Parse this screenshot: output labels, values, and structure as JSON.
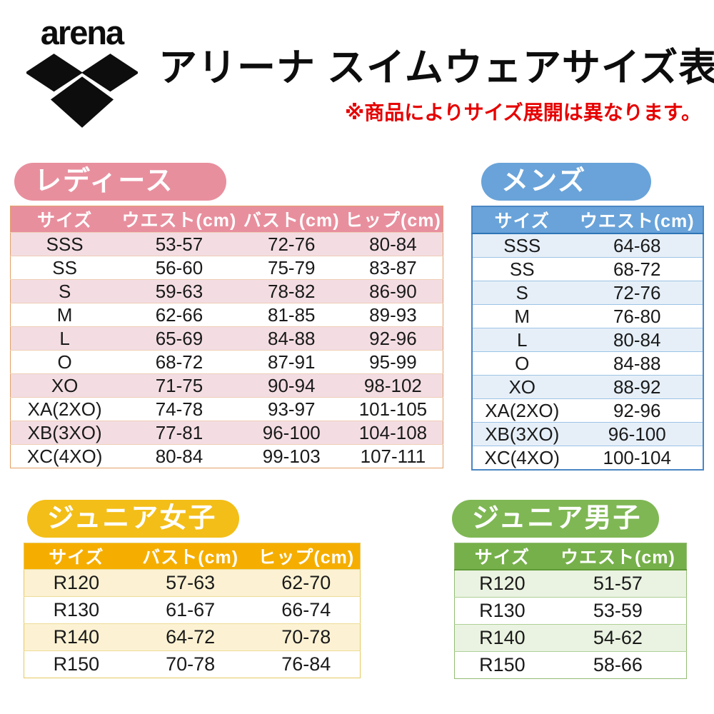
{
  "header": {
    "brand": "arena",
    "title": "アリーナ スイムウェアサイズ表",
    "note": "※商品によりサイズ展開は異なります。",
    "note_color": "#e60000"
  },
  "tables": {
    "ladies": {
      "badge": "レディース",
      "columns": [
        "サイズ",
        "ウエスト(cm)",
        "バスト(cm)",
        "ヒップ(cm)"
      ],
      "rows": [
        [
          "SSS",
          "53-57",
          "72-76",
          "80-84"
        ],
        [
          "SS",
          "56-60",
          "75-79",
          "83-87"
        ],
        [
          "S",
          "59-63",
          "78-82",
          "86-90"
        ],
        [
          "M",
          "62-66",
          "81-85",
          "89-93"
        ],
        [
          "L",
          "65-69",
          "84-88",
          "92-96"
        ],
        [
          "O",
          "68-72",
          "87-91",
          "95-99"
        ],
        [
          "XO",
          "71-75",
          "90-94",
          "98-102"
        ],
        [
          "XA(2XO)",
          "74-78",
          "93-97",
          "101-105"
        ],
        [
          "XB(3XO)",
          "77-81",
          "96-100",
          "104-108"
        ],
        [
          "XC(4XO)",
          "80-84",
          "99-103",
          "107-111"
        ]
      ],
      "colors": {
        "accent": "#e88f9e",
        "header": "#e88f9e",
        "zebra": "#f3dde3",
        "border": "#e2a064",
        "separator": "#eecdb4",
        "header_line": "#eecdb4"
      }
    },
    "mens": {
      "badge": "メンズ",
      "columns": [
        "サイズ",
        "ウエスト(cm)"
      ],
      "rows": [
        [
          "SSS",
          "64-68"
        ],
        [
          "SS",
          "68-72"
        ],
        [
          "S",
          "72-76"
        ],
        [
          "M",
          "76-80"
        ],
        [
          "L",
          "80-84"
        ],
        [
          "O",
          "84-88"
        ],
        [
          "XO",
          "88-92"
        ],
        [
          "XA(2XO)",
          "92-96"
        ],
        [
          "XB(3XO)",
          "96-100"
        ],
        [
          "XC(4XO)",
          "100-104"
        ]
      ],
      "colors": {
        "accent": "#69a3d9",
        "header": "#69a3d9",
        "zebra": "#e6eff8",
        "border": "#4a86c4",
        "separator": "#9dc3e6",
        "header_line": "#2e75b6"
      }
    },
    "junior_girls": {
      "badge": "ジュニア女子",
      "columns": [
        "サイズ",
        "バスト(cm)",
        "ヒップ(cm)"
      ],
      "rows": [
        [
          "R120",
          "57-63",
          "62-70"
        ],
        [
          "R130",
          "61-67",
          "66-74"
        ],
        [
          "R140",
          "64-72",
          "70-78"
        ],
        [
          "R150",
          "70-78",
          "76-84"
        ]
      ],
      "colors": {
        "accent": "#f3be17",
        "header": "#f5ae00",
        "zebra": "#fcf2d3",
        "border": "#e6c95f",
        "separator": "#eedd9a",
        "header_line": "#eedd9a"
      }
    },
    "junior_boys": {
      "badge": "ジュニア男子",
      "columns": [
        "サイズ",
        "ウエスト(cm)"
      ],
      "rows": [
        [
          "R120",
          "51-57"
        ],
        [
          "R130",
          "53-59"
        ],
        [
          "R140",
          "54-62"
        ],
        [
          "R150",
          "58-66"
        ]
      ],
      "colors": {
        "accent": "#7fb754",
        "header": "#76b04a",
        "zebra": "#eaf3e1",
        "border": "#93bd74",
        "separator": "#aecf97",
        "header_line": "#5f9a39"
      }
    }
  }
}
